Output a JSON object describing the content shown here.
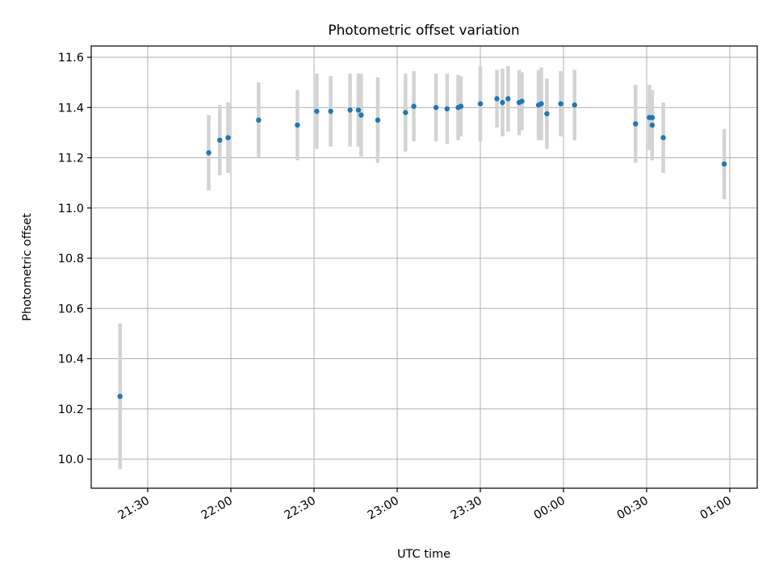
{
  "chart_data": {
    "type": "scatter",
    "title": "Photometric offset variation",
    "xlabel": "UTC time",
    "ylabel": "Photometric offset",
    "grid": true,
    "x_axis": {
      "type": "time",
      "tick_labels": [
        "21:30",
        "22:00",
        "22:30",
        "23:00",
        "23:30",
        "00:00",
        "00:30",
        "01:00"
      ],
      "tick_values_minutes_after_2130": [
        0,
        30,
        60,
        90,
        120,
        150,
        180,
        210
      ],
      "range": [
        "21:10",
        "01:10"
      ]
    },
    "y_axis": {
      "tick_labels": [
        "10.0",
        "10.2",
        "10.4",
        "10.6",
        "10.8",
        "11.0",
        "11.2",
        "11.4",
        "11.6"
      ],
      "tick_values": [
        10.0,
        10.2,
        10.4,
        10.6,
        10.8,
        11.0,
        11.2,
        11.4,
        11.6
      ],
      "ylim": [
        9.87,
        11.65
      ]
    },
    "colors": {
      "points": "#1f77b4",
      "errorbars": "#d3d3d3"
    },
    "series": [
      {
        "points": [
          {
            "x": "21:20",
            "y": 10.25,
            "err": 0.29
          },
          {
            "x": "21:52",
            "y": 11.22,
            "err": 0.15
          },
          {
            "x": "21:56",
            "y": 11.27,
            "err": 0.14
          },
          {
            "x": "21:59",
            "y": 11.28,
            "err": 0.14
          },
          {
            "x": "22:10",
            "y": 11.35,
            "err": 0.15
          },
          {
            "x": "22:24",
            "y": 11.33,
            "err": 0.14
          },
          {
            "x": "22:31",
            "y": 11.385,
            "err": 0.15
          },
          {
            "x": "22:36",
            "y": 11.385,
            "err": 0.14
          },
          {
            "x": "22:43",
            "y": 11.39,
            "err": 0.145
          },
          {
            "x": "22:46",
            "y": 11.39,
            "err": 0.145
          },
          {
            "x": "22:47",
            "y": 11.37,
            "err": 0.165
          },
          {
            "x": "22:53",
            "y": 11.35,
            "err": 0.17
          },
          {
            "x": "23:03",
            "y": 11.38,
            "err": 0.155
          },
          {
            "x": "23:06",
            "y": 11.405,
            "err": 0.14
          },
          {
            "x": "23:14",
            "y": 11.4,
            "err": 0.135
          },
          {
            "x": "23:18",
            "y": 11.395,
            "err": 0.14
          },
          {
            "x": "23:22",
            "y": 11.4,
            "err": 0.13
          },
          {
            "x": "23:23",
            "y": 11.405,
            "err": 0.12
          },
          {
            "x": "23:30",
            "y": 11.415,
            "err": 0.15
          },
          {
            "x": "23:36",
            "y": 11.435,
            "err": 0.115
          },
          {
            "x": "23:38",
            "y": 11.42,
            "err": 0.135
          },
          {
            "x": "23:40",
            "y": 11.435,
            "err": 0.13
          },
          {
            "x": "23:44",
            "y": 11.42,
            "err": 0.13
          },
          {
            "x": "23:45",
            "y": 11.425,
            "err": 0.115
          },
          {
            "x": "23:51",
            "y": 11.41,
            "err": 0.14
          },
          {
            "x": "23:52",
            "y": 11.415,
            "err": 0.145
          },
          {
            "x": "23:54",
            "y": 11.375,
            "err": 0.14
          },
          {
            "x": "23:59",
            "y": 11.415,
            "err": 0.13
          },
          {
            "x": "00:04",
            "y": 11.41,
            "err": 0.14
          },
          {
            "x": "00:26",
            "y": 11.335,
            "err": 0.155
          },
          {
            "x": "00:31",
            "y": 11.36,
            "err": 0.13
          },
          {
            "x": "00:32",
            "y": 11.36,
            "err": 0.11
          },
          {
            "x": "00:32",
            "y": 11.33,
            "err": 0.14
          },
          {
            "x": "00:36",
            "y": 11.28,
            "err": 0.14
          },
          {
            "x": "00:58",
            "y": 11.175,
            "err": 0.14
          }
        ]
      }
    ]
  }
}
